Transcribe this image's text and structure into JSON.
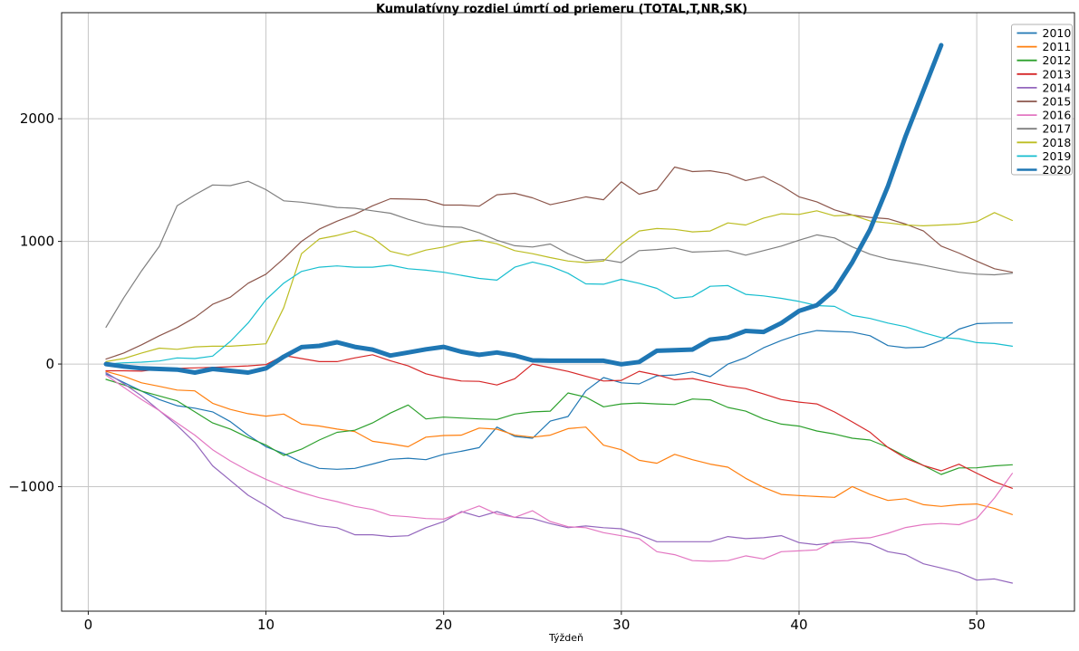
{
  "chart_data": {
    "type": "line",
    "title": "Kumulatívny rozdiel úmrtí od priemeru (TOTAL,T,NR,SK)",
    "xlabel": "Týždeň",
    "ylabel": "",
    "xlim": [
      -1.5,
      55.5
    ],
    "ylim": [
      -2015,
      2865
    ],
    "xticks": [
      0,
      10,
      20,
      30,
      40,
      50
    ],
    "yticks": [
      -1000,
      0,
      1000,
      2000
    ],
    "grid": true,
    "grid_color": "#c6c6c6",
    "spine_color": "#1a1a1a",
    "background": "#ffffff",
    "legend_position": "upper right",
    "x_start_week": 1,
    "series": [
      {
        "name": "2010",
        "color": "#1f77b4",
        "line_width": 1.2,
        "values": [
          -80,
          -150,
          -220,
          -290,
          -340,
          -360,
          -390,
          -470,
          -580,
          -674,
          -730,
          -800,
          -851,
          -858,
          -851,
          -815,
          -777,
          -768,
          -780,
          -736,
          -711,
          -682,
          -514,
          -590,
          -605,
          -465,
          -428,
          -219,
          -110,
          -153,
          -162,
          -96,
          -89,
          -64,
          -103,
          0,
          52,
          133,
          192,
          241,
          273,
          266,
          260,
          231,
          150,
          133,
          138,
          192,
          285,
          330,
          334,
          335
        ]
      },
      {
        "name": "2011",
        "color": "#ff7f0e",
        "line_width": 1.2,
        "values": [
          -60,
          -100,
          -153,
          -182,
          -212,
          -219,
          -320,
          -370,
          -405,
          -425,
          -408,
          -490,
          -505,
          -530,
          -550,
          -630,
          -650,
          -674,
          -596,
          -583,
          -580,
          -522,
          -531,
          -580,
          -596,
          -580,
          -527,
          -514,
          -662,
          -699,
          -785,
          -809,
          -736,
          -780,
          -816,
          -841,
          -932,
          -1006,
          -1063,
          -1072,
          -1080,
          -1087,
          -999,
          -1063,
          -1112,
          -1098,
          -1147,
          -1161,
          -1147,
          -1141,
          -1178,
          -1227
        ]
      },
      {
        "name": "2012",
        "color": "#2ca02c",
        "line_width": 1.2,
        "values": [
          -125,
          -170,
          -220,
          -260,
          -300,
          -390,
          -480,
          -530,
          -600,
          -660,
          -745,
          -694,
          -620,
          -557,
          -540,
          -480,
          -400,
          -334,
          -448,
          -433,
          -440,
          -448,
          -452,
          -408,
          -390,
          -384,
          -236,
          -270,
          -349,
          -325,
          -318,
          -325,
          -330,
          -285,
          -292,
          -354,
          -384,
          -448,
          -490,
          -506,
          -546,
          -571,
          -605,
          -620,
          -679,
          -753,
          -827,
          -900,
          -847,
          -846,
          -830,
          -821
        ]
      },
      {
        "name": "2013",
        "color": "#d62728",
        "line_width": 1.2,
        "values": [
          -55,
          -55,
          -58,
          -41,
          -35,
          -31,
          -27,
          -22,
          -15,
          -5,
          70,
          45,
          20,
          20,
          50,
          76,
          27,
          -15,
          -79,
          -114,
          -138,
          -141,
          -171,
          -120,
          0,
          -30,
          -60,
          -100,
          -138,
          -133,
          -59,
          -89,
          -128,
          -118,
          -150,
          -182,
          -200,
          -244,
          -290,
          -310,
          -325,
          -391,
          -472,
          -556,
          -680,
          -768,
          -827,
          -871,
          -817,
          -890,
          -960,
          -1013
        ]
      },
      {
        "name": "2014",
        "color": "#9467bd",
        "line_width": 1.2,
        "values": [
          -70,
          -160,
          -260,
          -380,
          -500,
          -640,
          -830,
          -950,
          -1070,
          -1155,
          -1250,
          -1285,
          -1319,
          -1334,
          -1392,
          -1392,
          -1407,
          -1400,
          -1334,
          -1285,
          -1203,
          -1245,
          -1203,
          -1250,
          -1260,
          -1301,
          -1334,
          -1320,
          -1334,
          -1343,
          -1392,
          -1449,
          -1449,
          -1449,
          -1449,
          -1407,
          -1424,
          -1416,
          -1399,
          -1456,
          -1473,
          -1456,
          -1449,
          -1466,
          -1530,
          -1554,
          -1629,
          -1663,
          -1700,
          -1762,
          -1752,
          -1786
        ]
      },
      {
        "name": "2015",
        "color": "#8c564b",
        "line_width": 1.2,
        "values": [
          40,
          90,
          157,
          231,
          297,
          379,
          487,
          545,
          659,
          733,
          860,
          1000,
          1100,
          1165,
          1220,
          1290,
          1348,
          1345,
          1340,
          1296,
          1296,
          1287,
          1380,
          1392,
          1355,
          1299,
          1330,
          1363,
          1340,
          1486,
          1385,
          1422,
          1606,
          1569,
          1576,
          1552,
          1496,
          1528,
          1454,
          1363,
          1323,
          1257,
          1215,
          1196,
          1185,
          1141,
          1085,
          962,
          905,
          839,
          777,
          748
        ]
      },
      {
        "name": "2016",
        "color": "#e377c2",
        "line_width": 1.2,
        "values": [
          -90,
          -190,
          -290,
          -380,
          -480,
          -580,
          -699,
          -790,
          -870,
          -940,
          -1000,
          -1048,
          -1090,
          -1122,
          -1161,
          -1186,
          -1235,
          -1245,
          -1260,
          -1264,
          -1210,
          -1157,
          -1223,
          -1250,
          -1196,
          -1284,
          -1326,
          -1334,
          -1375,
          -1400,
          -1424,
          -1530,
          -1554,
          -1603,
          -1608,
          -1603,
          -1564,
          -1589,
          -1530,
          -1523,
          -1515,
          -1441,
          -1424,
          -1416,
          -1380,
          -1333,
          -1309,
          -1300,
          -1310,
          -1260,
          -1092,
          -891
        ]
      },
      {
        "name": "2017",
        "color": "#7f7f7f",
        "line_width": 1.2,
        "values": [
          300,
          540,
          760,
          960,
          1290,
          1380,
          1460,
          1455,
          1490,
          1422,
          1331,
          1320,
          1300,
          1277,
          1270,
          1250,
          1230,
          1180,
          1140,
          1120,
          1115,
          1070,
          1010,
          965,
          954,
          979,
          900,
          844,
          852,
          827,
          925,
          934,
          947,
          913,
          918,
          925,
          888,
          925,
          962,
          1010,
          1053,
          1028,
          955,
          895,
          856,
          832,
          807,
          777,
          748,
          733,
          728,
          740
        ]
      },
      {
        "name": "2018",
        "color": "#bcbd22",
        "line_width": 1.2,
        "values": [
          20,
          45,
          90,
          130,
          120,
          140,
          145,
          145,
          155,
          165,
          460,
          900,
          1020,
          1048,
          1085,
          1030,
          919,
          885,
          929,
          954,
          994,
          1011,
          980,
          925,
          900,
          868,
          840,
          827,
          840,
          979,
          1085,
          1105,
          1098,
          1078,
          1085,
          1151,
          1134,
          1190,
          1225,
          1220,
          1250,
          1208,
          1215,
          1166,
          1151,
          1134,
          1127,
          1134,
          1141,
          1160,
          1235,
          1171
        ]
      },
      {
        "name": "2019",
        "color": "#17becf",
        "line_width": 1.2,
        "values": [
          0,
          10,
          15,
          25,
          50,
          45,
          65,
          185,
          335,
          525,
          660,
          755,
          790,
          800,
          790,
          790,
          806,
          777,
          765,
          748,
          723,
          698,
          684,
          790,
          832,
          797,
          740,
          654,
          651,
          691,
          658,
          617,
          536,
          549,
          634,
          640,
          568,
          556,
          536,
          511,
          477,
          470,
          396,
          372,
          334,
          305,
          256,
          216,
          207,
          175,
          167,
          145
        ]
      },
      {
        "name": "2020",
        "color": "#1f77b4",
        "line_width": 5,
        "values": [
          0,
          -20,
          -35,
          -40,
          -45,
          -70,
          -40,
          -55,
          -70,
          -35,
          60,
          138,
          148,
          178,
          140,
          118,
          69,
          94,
          120,
          140,
          100,
          75,
          94,
          70,
          30,
          27,
          27,
          27,
          27,
          -2,
          17,
          108,
          113,
          118,
          199,
          216,
          270,
          262,
          334,
          433,
          480,
          605,
          830,
          1097,
          1450,
          1860,
          2230,
          2600
        ]
      }
    ]
  }
}
